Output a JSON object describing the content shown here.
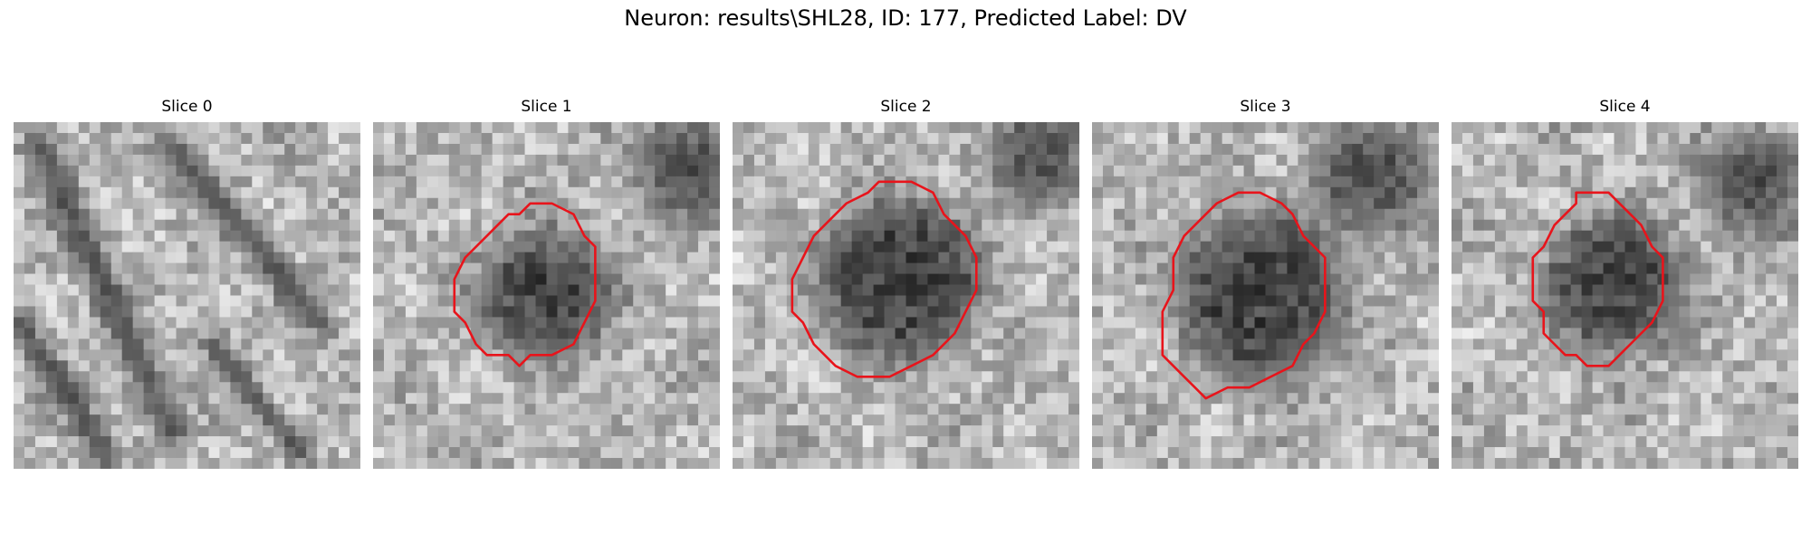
{
  "figure": {
    "title": "Neuron: results\\SHL28, ID: 177, Predicted Label: DV"
  },
  "panels": [
    {
      "title": "Slice 0",
      "has_contour": false
    },
    {
      "title": "Slice 1",
      "has_contour": true
    },
    {
      "title": "Slice 2",
      "has_contour": true
    },
    {
      "title": "Slice 3",
      "has_contour": true
    },
    {
      "title": "Slice 4",
      "has_contour": true
    }
  ],
  "colors": {
    "contour": "#e8141b",
    "background": "#ffffff"
  }
}
